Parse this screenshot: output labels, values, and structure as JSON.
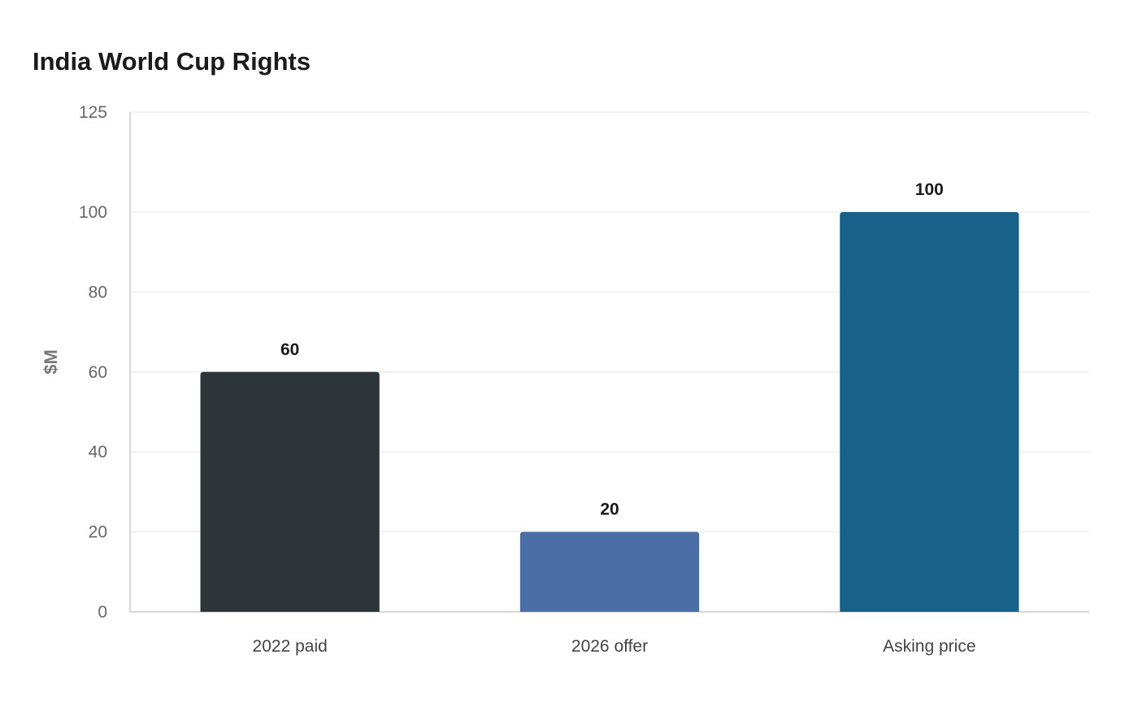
{
  "chart_data": {
    "type": "bar",
    "title": "India World Cup Rights",
    "xlabel": "",
    "ylabel": "$M",
    "categories": [
      "2022 paid",
      "2026 offer",
      "Asking price"
    ],
    "values": [
      60,
      20,
      100
    ],
    "data_labels": [
      "60",
      "20",
      "100"
    ],
    "ylim": [
      0,
      125
    ],
    "yticks": [
      0,
      20,
      40,
      60,
      80,
      100,
      125
    ],
    "ytick_labels": [
      "0",
      "20",
      "40",
      "60",
      "80",
      "100",
      "125"
    ],
    "bar_colors": [
      "#2d3538",
      "#4a6ea5",
      "#186188"
    ],
    "grid": true,
    "legend": "none"
  }
}
